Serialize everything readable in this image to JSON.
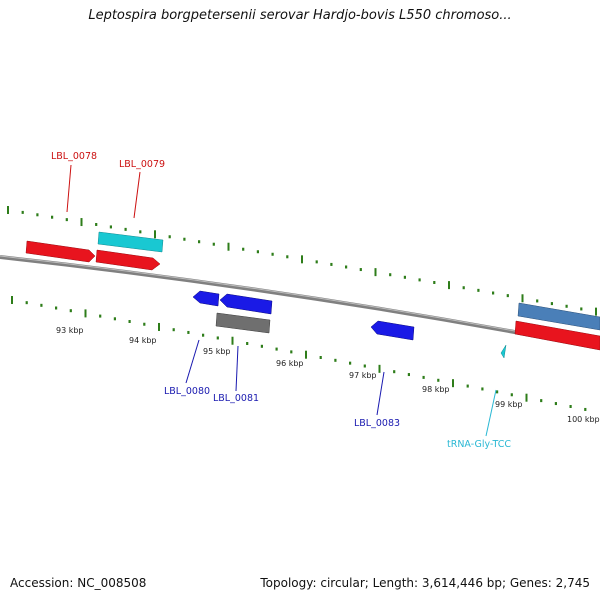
{
  "title": "Leptospira borgpetersenii serovar Hardjo-bovis L550 chromoso...",
  "footer": {
    "accession": "Accession: NC_008508",
    "summary": "Topology: circular; Length: 3,614,446 bp; Genes: 2,745"
  },
  "colors": {
    "plus_tick": "#2e7d1a",
    "minus_tick": "#2e7d1a",
    "backbone": "#808080",
    "cds_red": "#e8141e",
    "cds_blue": "#1a1ae6",
    "rrna_cyan": "#19c8d2",
    "pseudo_gray": "#6f6f6f",
    "steel_blue": "#4a7fb8",
    "trna_label": "#2ab8d4",
    "plus_label": "#cc1111",
    "minus_label": "#1a1ab0"
  },
  "scale_labels": [
    "93 kbp",
    "94 kbp",
    "95 kbp",
    "96 kbp",
    "97 kbp",
    "98 kbp",
    "99 kbp",
    "100 kbp"
  ],
  "features": [
    {
      "label": "LBL_0078",
      "strand": "+",
      "color": "cds_red"
    },
    {
      "label": "LBL_0079",
      "strand": "+",
      "color": "cds_red"
    },
    {
      "label": "LBL_0080",
      "strand": "-",
      "color": "cds_blue"
    },
    {
      "label": "LBL_0081",
      "strand": "-",
      "color": "cds_blue"
    },
    {
      "label": "LBL_0083",
      "strand": "-",
      "color": "cds_blue"
    },
    {
      "label": "tRNA-Gly-TCC",
      "strand": "-",
      "color": "rrna_cyan"
    }
  ]
}
